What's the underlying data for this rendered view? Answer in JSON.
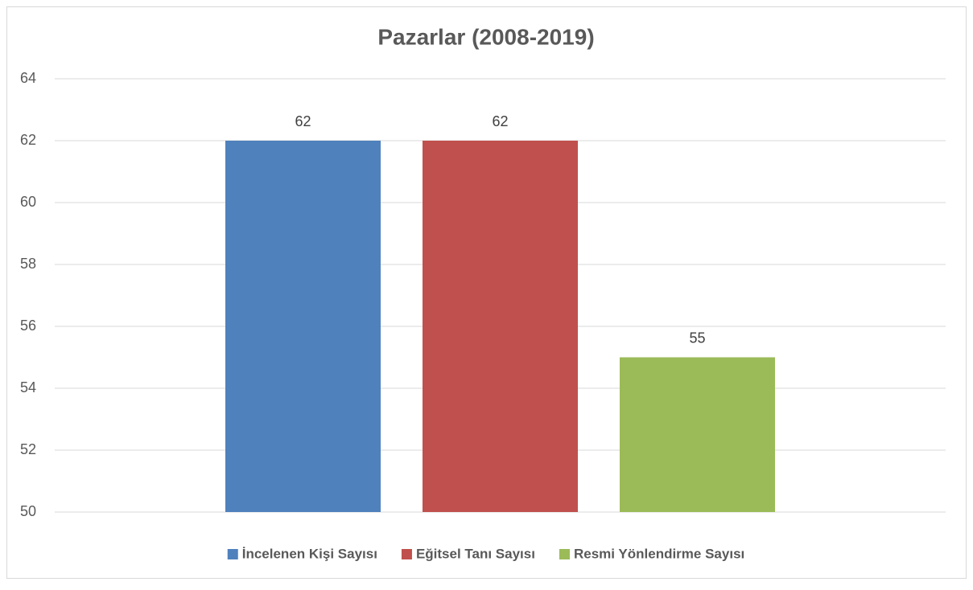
{
  "chart_data": {
    "type": "bar",
    "title": "Pazarlar (2008-2019)",
    "categories": [
      null
    ],
    "series": [
      {
        "name": "İncelenen Kişi Sayısı",
        "color": "#4f81bd",
        "values": [
          62
        ]
      },
      {
        "name": "Eğitsel Tanı Sayısı",
        "color": "#c0504d",
        "values": [
          62
        ]
      },
      {
        "name": "Resmi Yönlendirme Sayısı",
        "color": "#9bbb59",
        "values": [
          55
        ]
      }
    ],
    "ylim": [
      50,
      64
    ],
    "yticks": [
      50,
      52,
      54,
      56,
      58,
      60,
      62,
      64
    ],
    "grid": true,
    "legend": "bottom"
  }
}
